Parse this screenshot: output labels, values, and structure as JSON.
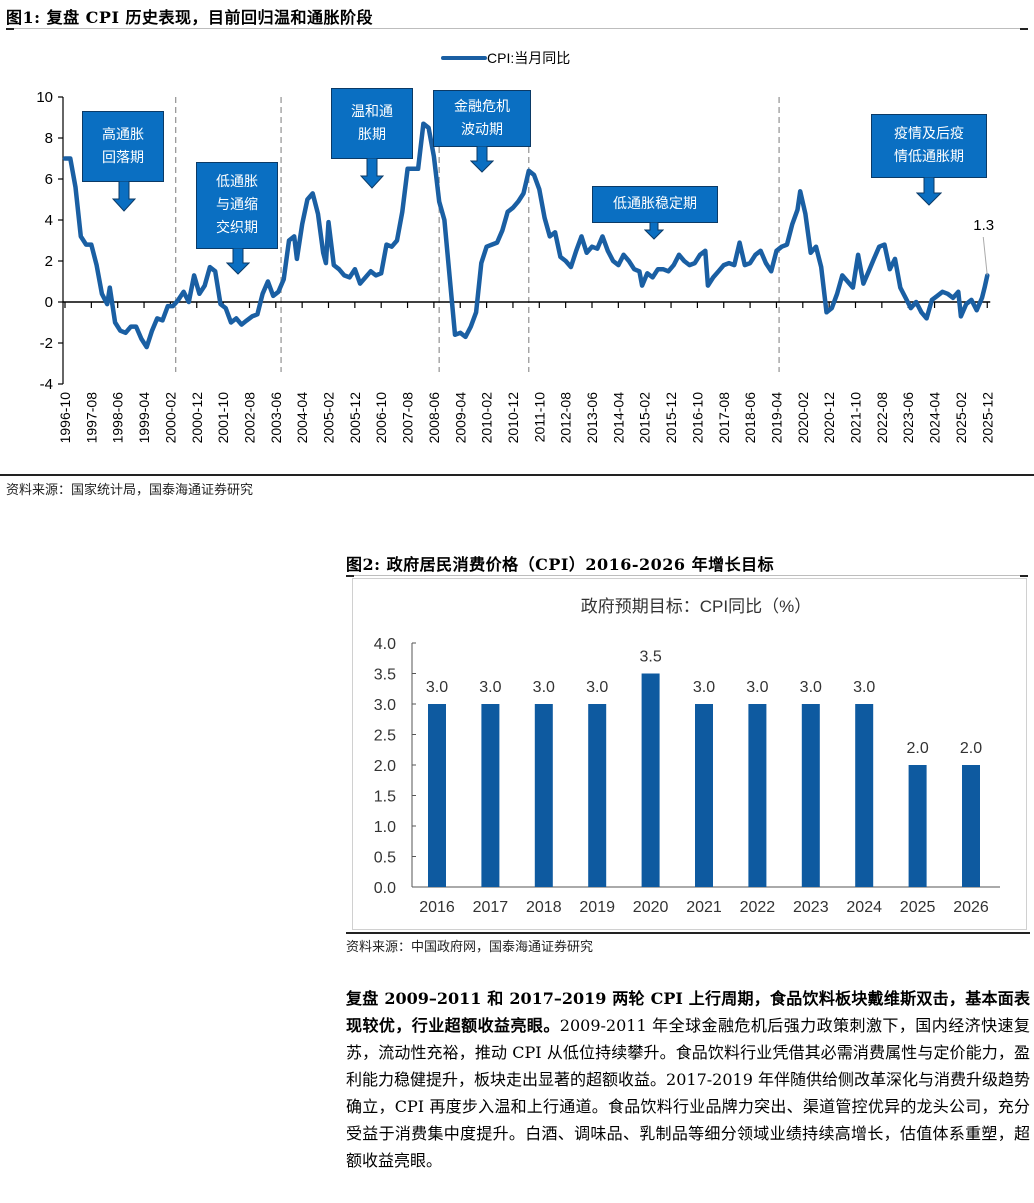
{
  "figure1": {
    "title": "图1:  复盘 CPI 历史表现，目前回归温和通胀阶段",
    "legend": "CPI:当月同比",
    "source": "资料来源：国家统计局，国泰海通证券研究",
    "last_label": "1.3",
    "callouts": [
      {
        "id": "high-inflation-fall",
        "text": "高通胀\n回落期"
      },
      {
        "id": "low-inflation-deflation",
        "text": "低通胀\n与通缩\n交织期"
      },
      {
        "id": "mild-inflation",
        "text": "温和通\n胀期"
      },
      {
        "id": "financial-crisis",
        "text": "金融危机\n波动期"
      },
      {
        "id": "low-inflation-stable",
        "text": "低通胀稳定期"
      },
      {
        "id": "pandemic-low-inflation",
        "text": "疫情及后疫\n情低通胀期"
      }
    ]
  },
  "figure2": {
    "title": "图2:  政府居民消费价格（CPI）2016-2026 年增长目标",
    "chart_title": "政府预期目标：CPI同比（%）",
    "source": "资料来源：中国政府网，国泰海通证券研究"
  },
  "paragraph": {
    "bold": "复盘 2009–2011 和 2017–2019 两轮 CPI 上行周期，食品饮料板块戴维斯双击，基本面表现较优，行业超额收益亮眼。",
    "body": "2009-2011 年全球金融危机后强力政策刺激下，国内经济快速复苏，流动性充裕，推动 CPI 从低位持续攀升。食品饮料行业凭借其必需消费属性与定价能力，盈利能力稳健提升，板块走出显著的超额收益。2017-2019 年伴随供给侧改革深化与消费升级趋势确立，CPI 再度步入温和上行通道。食品饮料行业品牌力突出、渠道管控优异的龙头公司，充分受益于消费集中度提升。白酒、调味品、乳制品等细分领域业绩持续高增长，估值体系重塑，超额收益亮眼。"
  },
  "colors": {
    "line": "#1a5fa3",
    "bar": "#0e5aa0",
    "callout_fill": "#0a6fc2",
    "callout_border": "#0b3a66",
    "dashed": "#9a9a9a"
  },
  "chart_data": [
    {
      "type": "line",
      "title": "复盘 CPI 历史表现，目前回归温和通胀阶段",
      "legend": [
        "CPI:当月同比"
      ],
      "xlabel": "",
      "ylabel": "",
      "ylim": [
        -4,
        10
      ],
      "yticks": [
        -4,
        -2,
        0,
        2,
        4,
        6,
        8,
        10
      ],
      "xticks": [
        "1996-10",
        "1997-08",
        "1998-06",
        "1999-04",
        "2000-02",
        "2000-12",
        "2001-10",
        "2002-08",
        "2003-06",
        "2004-04",
        "2005-02",
        "2005-12",
        "2006-10",
        "2007-08",
        "2008-06",
        "2009-04",
        "2010-02",
        "2010-12",
        "2011-10",
        "2012-08",
        "2013-06",
        "2014-04",
        "2015-02",
        "2015-12",
        "2016-10",
        "2017-08",
        "2018-06",
        "2019-04",
        "2020-02",
        "2020-12",
        "2021-10",
        "2022-08",
        "2023-06",
        "2024-04",
        "2025-02",
        "2025-12"
      ],
      "grid": false,
      "legend_position": "top",
      "period_dividers": [
        "2000-04",
        "2003-08",
        "2008-08",
        "2011-06",
        "2019-05"
      ],
      "annotations": [
        {
          "text": "高通胀回落期",
          "x": "1998-02"
        },
        {
          "text": "低通胀与通缩交织期",
          "x": "2002-01"
        },
        {
          "text": "温和通胀期",
          "x": "2006-06"
        },
        {
          "text": "金融危机波动期",
          "x": "2010-01"
        },
        {
          "text": "低通胀稳定期",
          "x": "2015-05"
        },
        {
          "text": "疫情及后疫情低通胀期",
          "x": "2023-09"
        },
        {
          "text": "1.3",
          "x": "2025-12",
          "y": 1.3
        }
      ],
      "series": [
        {
          "name": "CPI:当月同比",
          "points": [
            [
              "1996-10",
              7.0
            ],
            [
              "1996-12",
              7.0
            ],
            [
              "1997-02",
              5.6
            ],
            [
              "1997-04",
              3.2
            ],
            [
              "1997-06",
              2.8
            ],
            [
              "1997-08",
              2.8
            ],
            [
              "1997-10",
              1.8
            ],
            [
              "1997-12",
              0.4
            ],
            [
              "1998-02",
              -0.1
            ],
            [
              "1998-03",
              0.7
            ],
            [
              "1998-05",
              -1.0
            ],
            [
              "1998-07",
              -1.4
            ],
            [
              "1998-09",
              -1.5
            ],
            [
              "1998-11",
              -1.2
            ],
            [
              "1999-01",
              -1.2
            ],
            [
              "1999-03",
              -1.8
            ],
            [
              "1999-05",
              -2.2
            ],
            [
              "1999-07",
              -1.4
            ],
            [
              "1999-09",
              -0.8
            ],
            [
              "1999-11",
              -0.9
            ],
            [
              "2000-01",
              -0.2
            ],
            [
              "2000-03",
              -0.2
            ],
            [
              "2000-05",
              0.1
            ],
            [
              "2000-07",
              0.5
            ],
            [
              "2000-09",
              0.0
            ],
            [
              "2000-11",
              1.3
            ],
            [
              "2001-01",
              0.4
            ],
            [
              "2001-03",
              0.8
            ],
            [
              "2001-05",
              1.7
            ],
            [
              "2001-07",
              1.5
            ],
            [
              "2001-09",
              -0.1
            ],
            [
              "2001-11",
              -0.3
            ],
            [
              "2002-01",
              -1.0
            ],
            [
              "2002-03",
              -0.8
            ],
            [
              "2002-05",
              -1.1
            ],
            [
              "2002-07",
              -0.9
            ],
            [
              "2002-09",
              -0.7
            ],
            [
              "2002-11",
              -0.6
            ],
            [
              "2003-01",
              0.4
            ],
            [
              "2003-03",
              1.0
            ],
            [
              "2003-05",
              0.3
            ],
            [
              "2003-07",
              0.5
            ],
            [
              "2003-09",
              1.1
            ],
            [
              "2003-11",
              3.0
            ],
            [
              "2004-01",
              3.2
            ],
            [
              "2004-02",
              2.1
            ],
            [
              "2004-04",
              3.8
            ],
            [
              "2004-06",
              5.0
            ],
            [
              "2004-08",
              5.3
            ],
            [
              "2004-10",
              4.3
            ],
            [
              "2004-12",
              2.4
            ],
            [
              "2005-01",
              1.9
            ],
            [
              "2005-02",
              3.9
            ],
            [
              "2005-04",
              1.8
            ],
            [
              "2005-06",
              1.6
            ],
            [
              "2005-08",
              1.3
            ],
            [
              "2005-10",
              1.2
            ],
            [
              "2005-12",
              1.6
            ],
            [
              "2006-02",
              0.9
            ],
            [
              "2006-04",
              1.2
            ],
            [
              "2006-06",
              1.5
            ],
            [
              "2006-08",
              1.3
            ],
            [
              "2006-10",
              1.4
            ],
            [
              "2006-12",
              2.8
            ],
            [
              "2007-02",
              2.7
            ],
            [
              "2007-04",
              3.0
            ],
            [
              "2007-06",
              4.4
            ],
            [
              "2007-08",
              6.5
            ],
            [
              "2007-10",
              6.5
            ],
            [
              "2007-12",
              6.5
            ],
            [
              "2008-02",
              8.7
            ],
            [
              "2008-04",
              8.5
            ],
            [
              "2008-06",
              7.1
            ],
            [
              "2008-08",
              4.9
            ],
            [
              "2008-10",
              4.0
            ],
            [
              "2008-12",
              1.2
            ],
            [
              "2009-02",
              -1.6
            ],
            [
              "2009-04",
              -1.5
            ],
            [
              "2009-06",
              -1.7
            ],
            [
              "2009-08",
              -1.2
            ],
            [
              "2009-10",
              -0.5
            ],
            [
              "2009-12",
              1.9
            ],
            [
              "2010-02",
              2.7
            ],
            [
              "2010-04",
              2.8
            ],
            [
              "2010-06",
              2.9
            ],
            [
              "2010-08",
              3.5
            ],
            [
              "2010-10",
              4.4
            ],
            [
              "2010-12",
              4.6
            ],
            [
              "2011-02",
              4.9
            ],
            [
              "2011-04",
              5.3
            ],
            [
              "2011-06",
              6.4
            ],
            [
              "2011-08",
              6.2
            ],
            [
              "2011-10",
              5.5
            ],
            [
              "2011-12",
              4.1
            ],
            [
              "2012-02",
              3.2
            ],
            [
              "2012-04",
              3.4
            ],
            [
              "2012-06",
              2.2
            ],
            [
              "2012-08",
              2.0
            ],
            [
              "2012-10",
              1.7
            ],
            [
              "2012-12",
              2.5
            ],
            [
              "2013-02",
              3.2
            ],
            [
              "2013-04",
              2.4
            ],
            [
              "2013-06",
              2.7
            ],
            [
              "2013-08",
              2.6
            ],
            [
              "2013-10",
              3.2
            ],
            [
              "2013-12",
              2.5
            ],
            [
              "2014-02",
              2.0
            ],
            [
              "2014-04",
              1.8
            ],
            [
              "2014-06",
              2.3
            ],
            [
              "2014-08",
              2.0
            ],
            [
              "2014-10",
              1.6
            ],
            [
              "2014-12",
              1.5
            ],
            [
              "2015-01",
              0.8
            ],
            [
              "2015-03",
              1.4
            ],
            [
              "2015-05",
              1.2
            ],
            [
              "2015-07",
              1.6
            ],
            [
              "2015-09",
              1.6
            ],
            [
              "2015-11",
              1.5
            ],
            [
              "2016-01",
              1.8
            ],
            [
              "2016-03",
              2.3
            ],
            [
              "2016-05",
              2.0
            ],
            [
              "2016-07",
              1.8
            ],
            [
              "2016-09",
              1.9
            ],
            [
              "2016-11",
              2.3
            ],
            [
              "2017-01",
              2.5
            ],
            [
              "2017-02",
              0.8
            ],
            [
              "2017-04",
              1.2
            ],
            [
              "2017-06",
              1.5
            ],
            [
              "2017-08",
              1.8
            ],
            [
              "2017-10",
              1.9
            ],
            [
              "2017-12",
              1.8
            ],
            [
              "2018-02",
              2.9
            ],
            [
              "2018-04",
              1.8
            ],
            [
              "2018-06",
              1.9
            ],
            [
              "2018-08",
              2.3
            ],
            [
              "2018-10",
              2.5
            ],
            [
              "2018-12",
              1.9
            ],
            [
              "2019-02",
              1.5
            ],
            [
              "2019-04",
              2.5
            ],
            [
              "2019-06",
              2.7
            ],
            [
              "2019-08",
              2.8
            ],
            [
              "2019-10",
              3.8
            ],
            [
              "2019-12",
              4.5
            ],
            [
              "2020-01",
              5.4
            ],
            [
              "2020-03",
              4.3
            ],
            [
              "2020-05",
              2.4
            ],
            [
              "2020-07",
              2.7
            ],
            [
              "2020-09",
              1.7
            ],
            [
              "2020-11",
              -0.5
            ],
            [
              "2021-01",
              -0.3
            ],
            [
              "2021-03",
              0.4
            ],
            [
              "2021-05",
              1.3
            ],
            [
              "2021-07",
              1.0
            ],
            [
              "2021-09",
              0.7
            ],
            [
              "2021-11",
              2.3
            ],
            [
              "2022-01",
              0.9
            ],
            [
              "2022-03",
              1.5
            ],
            [
              "2022-05",
              2.1
            ],
            [
              "2022-07",
              2.7
            ],
            [
              "2022-09",
              2.8
            ],
            [
              "2022-11",
              1.6
            ],
            [
              "2023-01",
              2.1
            ],
            [
              "2023-03",
              0.7
            ],
            [
              "2023-05",
              0.2
            ],
            [
              "2023-07",
              -0.3
            ],
            [
              "2023-09",
              0.0
            ],
            [
              "2023-11",
              -0.5
            ],
            [
              "2024-01",
              -0.8
            ],
            [
              "2024-03",
              0.1
            ],
            [
              "2024-05",
              0.3
            ],
            [
              "2024-07",
              0.5
            ],
            [
              "2024-09",
              0.4
            ],
            [
              "2024-11",
              0.2
            ],
            [
              "2025-01",
              0.5
            ],
            [
              "2025-02",
              -0.7
            ],
            [
              "2025-04",
              -0.1
            ],
            [
              "2025-06",
              0.1
            ],
            [
              "2025-08",
              -0.4
            ],
            [
              "2025-10",
              0.2
            ],
            [
              "2025-11",
              0.7
            ],
            [
              "2025-12",
              1.3
            ]
          ]
        }
      ]
    },
    {
      "type": "bar",
      "title": "政府预期目标：CPI同比（%）",
      "categories": [
        "2016",
        "2017",
        "2018",
        "2019",
        "2020",
        "2021",
        "2022",
        "2023",
        "2024",
        "2025",
        "2026"
      ],
      "values": [
        3.0,
        3.0,
        3.0,
        3.0,
        3.5,
        3.0,
        3.0,
        3.0,
        3.0,
        2.0,
        2.0
      ],
      "data_labels": [
        "3.0",
        "3.0",
        "3.0",
        "3.0",
        "3.5",
        "3.0",
        "3.0",
        "3.0",
        "3.0",
        "2.0",
        "2.0"
      ],
      "xlabel": "",
      "ylabel": "",
      "ylim": [
        0,
        4.0
      ],
      "yticks": [
        "0.0",
        "0.5",
        "1.0",
        "1.5",
        "2.0",
        "2.5",
        "3.0",
        "3.5",
        "4.0"
      ],
      "grid": false
    }
  ]
}
